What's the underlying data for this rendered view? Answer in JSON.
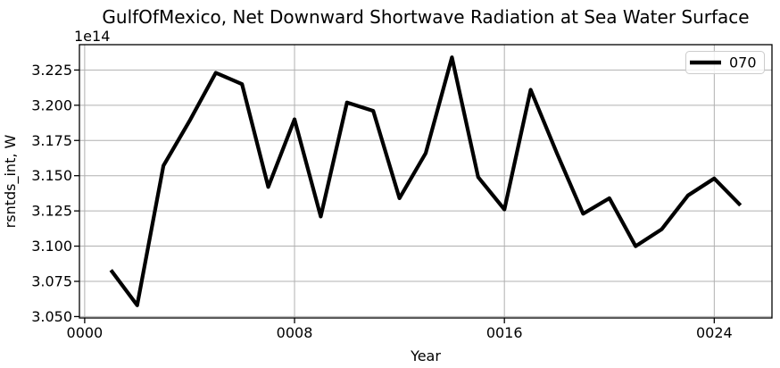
{
  "chart_data": {
    "type": "line",
    "title": "GulfOfMexico, Net Downward Shortwave Radiation at Sea Water Surface",
    "xlabel": "Year",
    "ylabel": "rsntds_int, W",
    "offset_text": "1e14",
    "grid": true,
    "grid_color": "#b0b0b0",
    "background_color": "#ffffff",
    "axes_color": "#000000",
    "xlim": [
      -0.2,
      26.2
    ],
    "ylim": [
      3.049,
      3.243
    ],
    "xticks": [
      0,
      8,
      16,
      24
    ],
    "xtick_labels": [
      "0000",
      "0008",
      "0016",
      "0024"
    ],
    "yticks": [
      3.05,
      3.075,
      3.1,
      3.125,
      3.15,
      3.175,
      3.2,
      3.225
    ],
    "ytick_labels": [
      "3.050",
      "3.075",
      "3.100",
      "3.125",
      "3.150",
      "3.175",
      "3.200",
      "3.225"
    ],
    "x": [
      1,
      2,
      3,
      4,
      5,
      6,
      7,
      8,
      9,
      10,
      11,
      12,
      13,
      14,
      15,
      16,
      17,
      18,
      19,
      20,
      21,
      22,
      23,
      24,
      25
    ],
    "series": [
      {
        "name": "070",
        "color": "#000000",
        "values": [
          3.083,
          3.058,
          3.157,
          3.189,
          3.223,
          3.215,
          3.142,
          3.19,
          3.121,
          3.202,
          3.196,
          3.134,
          3.166,
          3.234,
          3.149,
          3.126,
          3.211,
          3.166,
          3.123,
          3.134,
          3.1,
          3.112,
          3.136,
          3.148,
          3.129
        ]
      }
    ],
    "legend": {
      "position": "upper right",
      "entries": [
        {
          "label": "070",
          "color": "#000000"
        }
      ]
    }
  }
}
